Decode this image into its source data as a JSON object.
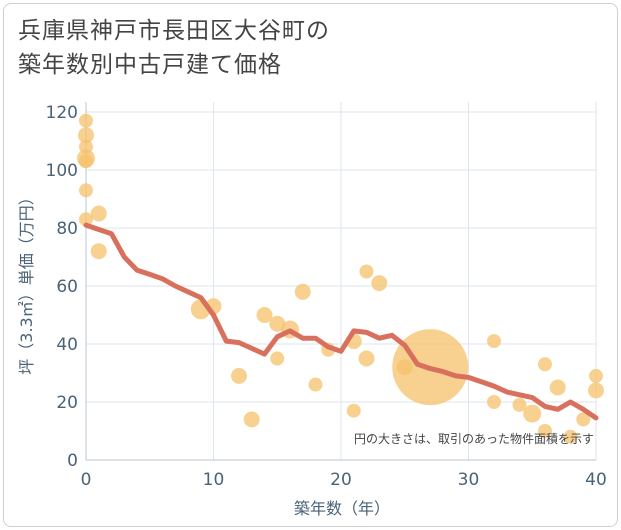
{
  "title": {
    "line1": "兵庫県神戸市長田区大谷町の",
    "line2": "築年数別中古戸建て価格"
  },
  "chart_data": {
    "type": "scatter",
    "title": "兵庫県神戸市長田区大谷町の築年数別中古戸建て価格",
    "xlabel": "築年数（年）",
    "ylabel": "坪（3.3㎡）単価（万円）",
    "xlim": [
      0,
      40
    ],
    "ylim": [
      0,
      120
    ],
    "xticks": [
      "0",
      "10",
      "20",
      "30",
      "40"
    ],
    "yticks": [
      "0",
      "20",
      "40",
      "60",
      "80",
      "100",
      "120"
    ],
    "grid": true,
    "annotation": "円の大きさは、取引のあった物件面積を示す",
    "colors": {
      "bubble": "#f5c26b",
      "trend": "#d9705d",
      "axis_text": "#4a6378",
      "grid": "#dde6ee"
    },
    "series": [
      {
        "type": "bubble",
        "points": [
          {
            "x": 0,
            "y": 117,
            "s": 7
          },
          {
            "x": 0,
            "y": 112,
            "s": 8
          },
          {
            "x": 0,
            "y": 108,
            "s": 7
          },
          {
            "x": 0,
            "y": 104,
            "s": 9
          },
          {
            "x": 0,
            "y": 103,
            "s": 7
          },
          {
            "x": 0,
            "y": 93,
            "s": 7
          },
          {
            "x": 0,
            "y": 83,
            "s": 7
          },
          {
            "x": 1,
            "y": 85,
            "s": 8
          },
          {
            "x": 1,
            "y": 72,
            "s": 8
          },
          {
            "x": 9,
            "y": 52,
            "s": 10
          },
          {
            "x": 10,
            "y": 53,
            "s": 8
          },
          {
            "x": 12,
            "y": 29,
            "s": 8
          },
          {
            "x": 13,
            "y": 14,
            "s": 8
          },
          {
            "x": 14,
            "y": 50,
            "s": 8
          },
          {
            "x": 15,
            "y": 47,
            "s": 8
          },
          {
            "x": 15,
            "y": 35,
            "s": 7
          },
          {
            "x": 16,
            "y": 45,
            "s": 9
          },
          {
            "x": 17,
            "y": 58,
            "s": 8
          },
          {
            "x": 18,
            "y": 26,
            "s": 7
          },
          {
            "x": 19,
            "y": 38,
            "s": 7
          },
          {
            "x": 21,
            "y": 41,
            "s": 8
          },
          {
            "x": 21,
            "y": 17,
            "s": 7
          },
          {
            "x": 22,
            "y": 65,
            "s": 7
          },
          {
            "x": 22,
            "y": 35,
            "s": 8
          },
          {
            "x": 23,
            "y": 61,
            "s": 8
          },
          {
            "x": 25,
            "y": 32,
            "s": 8
          },
          {
            "x": 27,
            "y": 32,
            "s": 38
          },
          {
            "x": 32,
            "y": 41,
            "s": 7
          },
          {
            "x": 32,
            "y": 20,
            "s": 7
          },
          {
            "x": 34,
            "y": 19,
            "s": 7
          },
          {
            "x": 35,
            "y": 16,
            "s": 9
          },
          {
            "x": 36,
            "y": 33,
            "s": 7
          },
          {
            "x": 36,
            "y": 10,
            "s": 7
          },
          {
            "x": 37,
            "y": 25,
            "s": 8
          },
          {
            "x": 38,
            "y": 8,
            "s": 7
          },
          {
            "x": 39,
            "y": 14,
            "s": 7
          },
          {
            "x": 40,
            "y": 29,
            "s": 7
          },
          {
            "x": 40,
            "y": 24,
            "s": 8
          }
        ]
      },
      {
        "type": "line",
        "points": [
          {
            "x": 0,
            "y": 81
          },
          {
            "x": 1,
            "y": 79.5
          },
          {
            "x": 2,
            "y": 78
          },
          {
            "x": 3,
            "y": 70
          },
          {
            "x": 4,
            "y": 65.5
          },
          {
            "x": 5,
            "y": 64
          },
          {
            "x": 6,
            "y": 62.5
          },
          {
            "x": 7,
            "y": 60
          },
          {
            "x": 8,
            "y": 58
          },
          {
            "x": 9,
            "y": 56
          },
          {
            "x": 10,
            "y": 50
          },
          {
            "x": 11,
            "y": 41
          },
          {
            "x": 12,
            "y": 40.5
          },
          {
            "x": 13,
            "y": 38.5
          },
          {
            "x": 14,
            "y": 36.5
          },
          {
            "x": 15,
            "y": 42.5
          },
          {
            "x": 16,
            "y": 44.5
          },
          {
            "x": 17,
            "y": 42
          },
          {
            "x": 18,
            "y": 42
          },
          {
            "x": 19,
            "y": 39
          },
          {
            "x": 20,
            "y": 37.5
          },
          {
            "x": 21,
            "y": 44.5
          },
          {
            "x": 22,
            "y": 44
          },
          {
            "x": 23,
            "y": 42
          },
          {
            "x": 24,
            "y": 43
          },
          {
            "x": 25,
            "y": 39.5
          },
          {
            "x": 26,
            "y": 33
          },
          {
            "x": 27,
            "y": 31.5
          },
          {
            "x": 28,
            "y": 30.5
          },
          {
            "x": 29,
            "y": 29
          },
          {
            "x": 30,
            "y": 28.5
          },
          {
            "x": 31,
            "y": 27
          },
          {
            "x": 32,
            "y": 25.5
          },
          {
            "x": 33,
            "y": 23.5
          },
          {
            "x": 34,
            "y": 22.5
          },
          {
            "x": 35,
            "y": 21.5
          },
          {
            "x": 36,
            "y": 18.5
          },
          {
            "x": 37,
            "y": 17.5
          },
          {
            "x": 38,
            "y": 20
          },
          {
            "x": 39,
            "y": 17.5
          },
          {
            "x": 40,
            "y": 14.5
          }
        ]
      }
    ]
  }
}
